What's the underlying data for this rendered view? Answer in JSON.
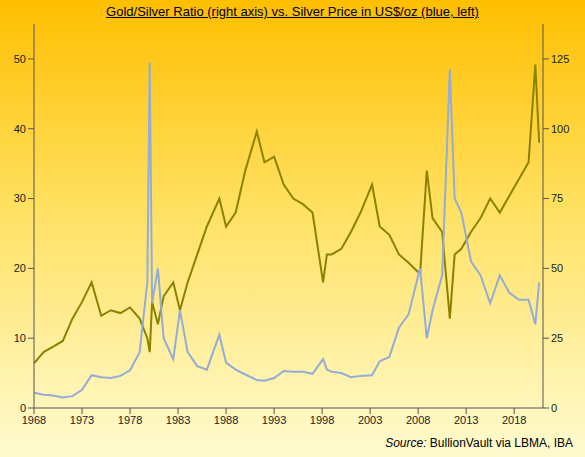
{
  "chart_data": {
    "type": "line",
    "title": "Gold/Silver Ratio (right axis) vs. Silver Price in US$/oz (blue, left)",
    "source": "Source: BullionVault via LBMA, IBA",
    "x": [
      1968,
      1969,
      1970,
      1971,
      1972,
      1973,
      1974,
      1975,
      1976,
      1977,
      1978,
      1979,
      1979.8,
      1980.05,
      1980.3,
      1980.9,
      1981.5,
      1982.5,
      1983.2,
      1984,
      1985,
      1986,
      1987.3,
      1988,
      1989,
      1990,
      1991.2,
      1992,
      1993,
      1994,
      1995,
      1996,
      1997,
      1998.1,
      1998.5,
      1999,
      2000,
      2001,
      2002,
      2003.2,
      2004,
      2005,
      2006,
      2007,
      2008.2,
      2008.9,
      2009.5,
      2010.5,
      2011.3,
      2011.8,
      2012.5,
      2013.5,
      2014.5,
      2015.5,
      2016.5,
      2017.5,
      2018.5,
      2019.5,
      2020.2,
      2020.6
    ],
    "series": [
      {
        "color": "#8a8200",
        "axis": "y2",
        "values": [
          16,
          20,
          22,
          24,
          32,
          38,
          45,
          33,
          35,
          34,
          36,
          32,
          25,
          20,
          38,
          30,
          40,
          45,
          35,
          45,
          55,
          65,
          75,
          65,
          70,
          85,
          99,
          88,
          90,
          80,
          75,
          73,
          70,
          45,
          55,
          55,
          57,
          63,
          70,
          80,
          65,
          62,
          55,
          52,
          48,
          85,
          68,
          63,
          32,
          55,
          57,
          63,
          68,
          75,
          70,
          76,
          82,
          88,
          123,
          95
        ]
      },
      {
        "color": "#93acd8",
        "values": [
          2.2,
          1.9,
          1.8,
          1.5,
          1.7,
          2.6,
          4.7,
          4.4,
          4.3,
          4.6,
          5.4,
          8,
          18,
          49.5,
          15,
          20,
          10,
          7,
          14,
          8,
          6,
          5.5,
          10.5,
          6.5,
          5.5,
          4.8,
          4,
          3.9,
          4.3,
          5.3,
          5.2,
          5.2,
          4.9,
          7,
          5.5,
          5.2,
          5,
          4.4,
          4.6,
          4.7,
          6.7,
          7.3,
          11.5,
          13.4,
          20,
          10,
          14,
          19,
          48.5,
          30,
          28,
          21,
          19,
          15,
          19,
          16.5,
          15.5,
          15.5,
          12,
          18
        ]
      }
    ],
    "xlim": [
      1968,
      2021
    ],
    "xticks": [
      1968,
      1973,
      1978,
      1983,
      1988,
      1993,
      1998,
      2003,
      2008,
      2013,
      2018
    ],
    "ylim": [
      0,
      55
    ],
    "yticks": [
      0,
      10,
      20,
      30,
      40,
      50
    ],
    "y2lim": [
      0,
      137.5
    ],
    "y2ticks": [
      0,
      25,
      50,
      75,
      100,
      125
    ],
    "grid": false
  }
}
